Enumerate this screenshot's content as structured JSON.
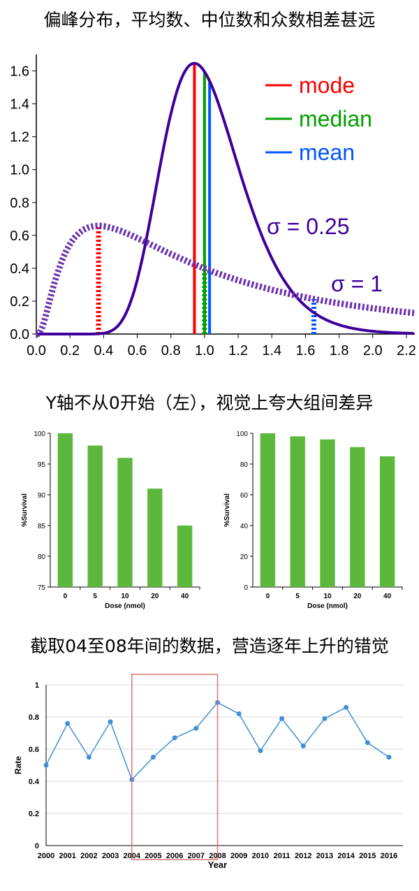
{
  "sections": {
    "s1_title": "偏峰分布，平均数、中位数和众数相差甚远",
    "s2_title": "Y轴不从0开始（左），视觉上夸大组间差异",
    "s3_title": "截取04至08年间的数据，营造逐年上升的错觉"
  },
  "colors": {
    "mode": "#ff0000",
    "median": "#00a000",
    "mean": "#0055ff",
    "curve": "#3d0099",
    "dashed_curve": "#6a30b0",
    "bar": "#5cb83c",
    "line": "#3f8fd8",
    "highlight": "#e07070"
  },
  "chart_data": [
    {
      "type": "line",
      "title": "偏峰分布，平均数、中位数和众数相差甚远",
      "xlim": [
        0,
        2.25
      ],
      "ylim": [
        0,
        1.7
      ],
      "x_ticks": [
        "0.0",
        "0.2",
        "0.4",
        "0.6",
        "0.8",
        "1.0",
        "1.2",
        "1.4",
        "1.6",
        "1.8",
        "2.0",
        "2.2"
      ],
      "x_tick_values": [
        0,
        0.2,
        0.4,
        0.6,
        0.8,
        1.0,
        1.2,
        1.4,
        1.6,
        1.8,
        2.0,
        2.2
      ],
      "y_ticks": [
        "0.0",
        "0.2",
        "0.4",
        "0.6",
        "0.8",
        "1.0",
        "1.2",
        "1.4",
        "1.6"
      ],
      "y_tick_values": [
        0,
        0.2,
        0.4,
        0.6,
        0.8,
        1.0,
        1.2,
        1.4,
        1.6
      ],
      "legend": [
        {
          "label": "mode",
          "color_key": "mode"
        },
        {
          "label": "median",
          "color_key": "median"
        },
        {
          "label": "mean",
          "color_key": "mean"
        }
      ],
      "series": [
        {
          "name": "σ = 0.25",
          "style": "solid",
          "sigma": 0.25,
          "mu": 0.0,
          "mode": 0.94,
          "median": 1.0,
          "mean": 1.03
        },
        {
          "name": "σ = 1",
          "style": "dashed",
          "sigma": 1.0,
          "mu": 0.0,
          "mode": 0.37,
          "median": 1.0,
          "mean": 1.65
        }
      ]
    },
    {
      "type": "bar",
      "categories": [
        "0",
        "5",
        "10",
        "20",
        "40"
      ],
      "values": [
        100,
        98,
        96,
        91,
        85
      ],
      "xlabel": "Dose (nmol)",
      "ylabel": "%Survival",
      "ylim": [
        75,
        100
      ],
      "y_ticks": [
        "75",
        "80",
        "85",
        "90",
        "95",
        "100"
      ],
      "y_tick_values": [
        75,
        80,
        85,
        90,
        95,
        100
      ]
    },
    {
      "type": "bar",
      "categories": [
        "0",
        "5",
        "10",
        "20",
        "40"
      ],
      "values": [
        100,
        98,
        96,
        91,
        85
      ],
      "xlabel": "Dose (nmol)",
      "ylabel": "%Survival",
      "ylim": [
        0,
        100
      ],
      "y_ticks": [
        "0",
        "20",
        "40",
        "60",
        "80",
        "100"
      ],
      "y_tick_values": [
        0,
        20,
        40,
        60,
        80,
        100
      ]
    },
    {
      "type": "line",
      "x": [
        "2000",
        "2001",
        "2002",
        "2003",
        "2004",
        "2005",
        "2006",
        "2007",
        "2008",
        "2009",
        "2010",
        "2011",
        "2012",
        "2013",
        "2014",
        "2015",
        "2016"
      ],
      "values": [
        0.5,
        0.76,
        0.55,
        0.77,
        0.41,
        0.55,
        0.67,
        0.73,
        0.89,
        0.82,
        0.59,
        0.79,
        0.62,
        0.79,
        0.86,
        0.64,
        0.55
      ],
      "xlabel": "Year",
      "ylabel": "Rate",
      "ylim": [
        0,
        1
      ],
      "y_ticks": [
        "0",
        "0.2",
        "0.4",
        "0.6",
        "0.8",
        "1"
      ],
      "y_tick_values": [
        0,
        0.2,
        0.4,
        0.6,
        0.8,
        1
      ],
      "highlight_range": [
        "2004",
        "2008"
      ]
    }
  ]
}
